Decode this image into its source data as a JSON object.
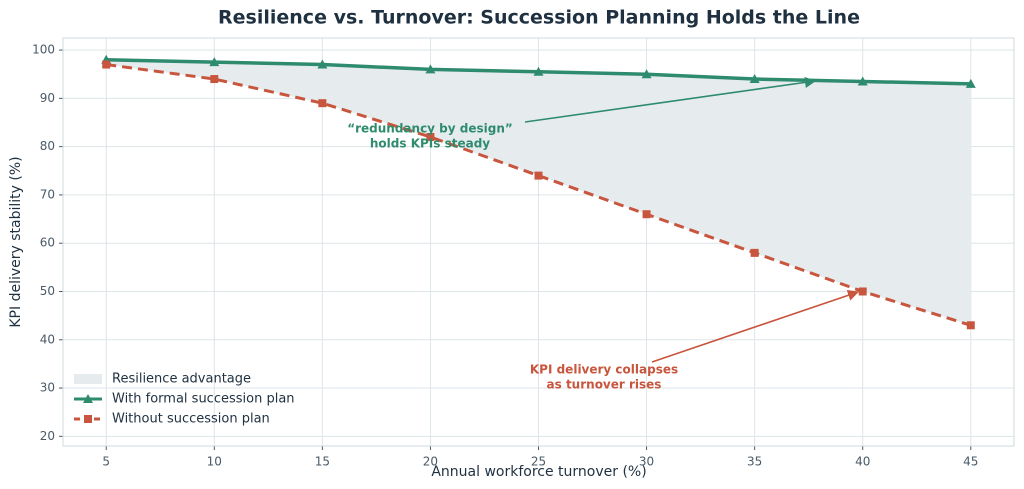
{
  "chart_data": {
    "type": "line",
    "title": "Resilience vs. Turnover: Succession Planning Holds the Line",
    "x_label": "Annual workforce turnover (%)",
    "y_label": "KPI delivery stability (%)",
    "x": [
      5,
      10,
      15,
      20,
      25,
      30,
      35,
      40,
      45
    ],
    "series": [
      {
        "name": "With formal succession plan",
        "color": "#2e8b6e",
        "marker": "triangle",
        "dash": false,
        "values": [
          98,
          97.5,
          97,
          96,
          95.5,
          95,
          94,
          93.5,
          93
        ]
      },
      {
        "name": "Without succession plan",
        "color": "#c8553d",
        "marker": "square",
        "dash": true,
        "values": [
          97,
          94,
          89,
          82,
          74,
          66,
          58,
          50,
          43
        ]
      }
    ],
    "fill_between": {
      "name": "Resilience advantage",
      "color": "#e6ecee"
    },
    "annotations": [
      {
        "lines": [
          "“redundancy by design”",
          "holds KPIs steady"
        ],
        "color": "#2e8b6e"
      },
      {
        "lines": [
          "KPI delivery collapses",
          "as turnover rises"
        ],
        "color": "#c8553d"
      }
    ],
    "xlim": [
      3,
      47
    ],
    "ylim": [
      18,
      102.5
    ],
    "xticks": [
      5,
      10,
      15,
      20,
      25,
      30,
      35,
      40,
      45
    ],
    "yticks": [
      20,
      30,
      40,
      50,
      60,
      70,
      80,
      90,
      100
    ],
    "grid": true,
    "legend": "lower left"
  }
}
